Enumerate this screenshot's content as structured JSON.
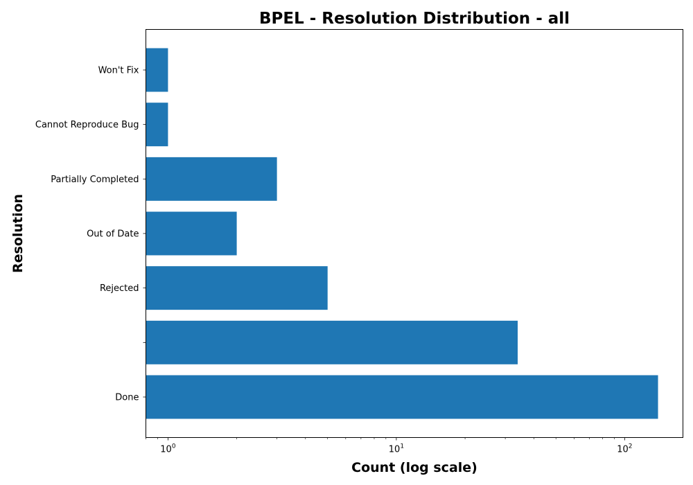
{
  "chart_data": {
    "type": "bar",
    "orientation": "horizontal",
    "title": "BPEL - Resolution Distribution - all",
    "xlabel": "Count (log scale)",
    "ylabel": "Resolution",
    "x_scale": "log",
    "xlim": [
      0.8,
      180
    ],
    "x_ticks": [
      {
        "value": 1,
        "base": "10",
        "exp": "0"
      },
      {
        "value": 10,
        "base": "10",
        "exp": "1"
      },
      {
        "value": 100,
        "base": "10",
        "exp": "2"
      }
    ],
    "categories": [
      "Done",
      "",
      "Rejected",
      "Out of Date",
      "Partially Completed",
      "Cannot Reproduce Bug",
      "Won't Fix"
    ],
    "values": [
      140,
      34,
      5,
      2,
      3,
      1,
      1
    ],
    "bar_color": "#1f77b4",
    "grid": false,
    "legend": "none"
  }
}
